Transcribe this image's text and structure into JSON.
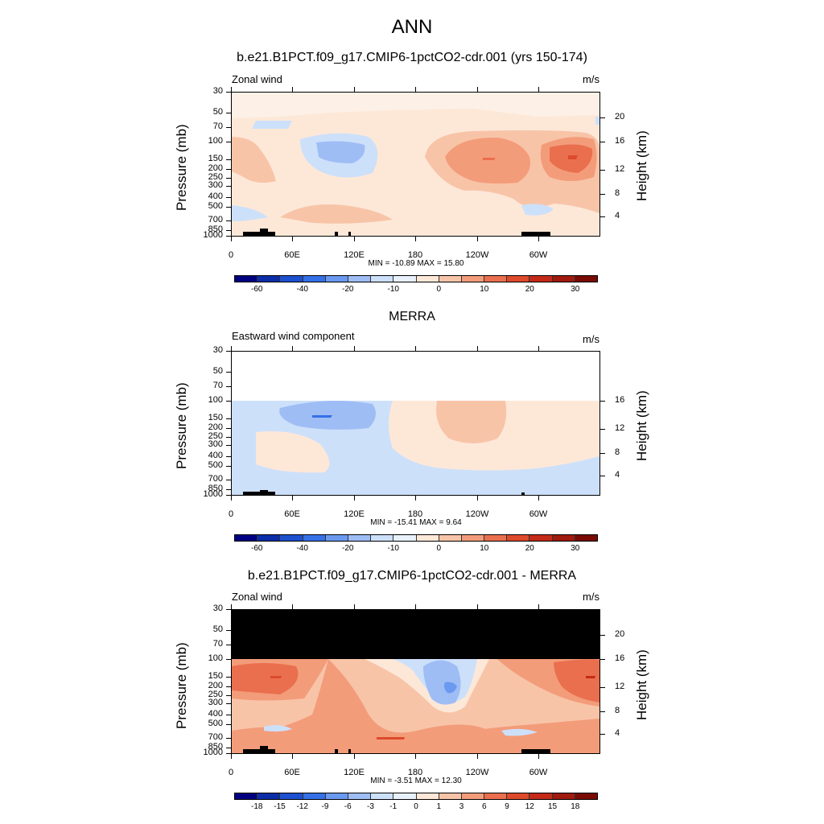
{
  "title": "ANN",
  "shared": {
    "y_left_label": "Pressure (mb)",
    "y_right_label": "Height (km)",
    "pressure_ticks": [
      "30",
      "50",
      "70",
      "100",
      "150",
      "200",
      "250",
      "300",
      "400",
      "500",
      "700",
      "850",
      "1000"
    ],
    "height_ticks": [
      "4",
      "8",
      "12",
      "16",
      "20"
    ],
    "x_ticks": [
      "0",
      "60E",
      "120E",
      "180",
      "120W",
      "60W"
    ]
  },
  "panels": [
    {
      "title": "b.e21.B1PCT.f09_g17.CMIP6-1pctCO2-cdr.001 (yrs 150-174)",
      "left_title": "Zonal wind",
      "units": "m/s",
      "minmax": "MIN = -10.89  MAX =  15.80",
      "colorbar_labels": [
        "-60",
        "-40",
        "-20",
        "-10",
        "0",
        "10",
        "20",
        "30"
      ]
    },
    {
      "title": "MERRA",
      "left_title": "Eastward wind component",
      "units": "m/s",
      "minmax": "MIN = -15.41  MAX =   9.64",
      "colorbar_labels": [
        "-60",
        "-40",
        "-20",
        "-10",
        "0",
        "10",
        "20",
        "30"
      ]
    },
    {
      "title": "b.e21.B1PCT.f09_g17.CMIP6-1pctCO2-cdr.001 - MERRA",
      "left_title": "Zonal wind",
      "units": "m/s",
      "minmax": "MIN =  -3.51  MAX =  12.30",
      "colorbar_labels": [
        "-18",
        "-15",
        "-12",
        "-9",
        "-6",
        "-3",
        "-1",
        "0",
        "1",
        "3",
        "6",
        "9",
        "12",
        "15",
        "18"
      ]
    }
  ],
  "colors": {
    "palette": [
      "#000080",
      "#0a2ea8",
      "#1d50cf",
      "#3570e6",
      "#6a99f0",
      "#9fbdf5",
      "#cde0fa",
      "#fde8d8",
      "#f8c4a8",
      "#f39c7a",
      "#ea6f4e",
      "#dd4a2c",
      "#c42a18",
      "#a01a0e",
      "#7a0a04"
    ],
    "panel1_scale": [
      "#000080",
      "#0a2ea8",
      "#1d50cf",
      "#3570e6",
      "#6a99f0",
      "#9fbdf5",
      "#cde0fa",
      "#e8f0fb",
      "#fde8d8",
      "#f8c4a8",
      "#f39c7a",
      "#ea6f4e",
      "#dd4a2c",
      "#c42a18",
      "#a01a0e",
      "#7a0a04"
    ],
    "panel3_scale": [
      "#000080",
      "#0a2ea8",
      "#1d50cf",
      "#3570e6",
      "#6a99f0",
      "#9fbdf5",
      "#cde0fa",
      "#e8f0fb",
      "#fde8d8",
      "#f8c4a8",
      "#f39c7a",
      "#ea6f4e",
      "#dd4a2c",
      "#c42a18",
      "#a01a0e",
      "#7a0a04"
    ]
  },
  "chart_data": [
    {
      "type": "heatmap",
      "title": "b.e21.B1PCT.f09_g17.CMIP6-1pctCO2-cdr.001 (yrs 150-174)",
      "variable": "Zonal wind",
      "units": "m/s",
      "x_ticks": [
        "0",
        "60E",
        "120E",
        "180",
        "120W",
        "60W"
      ],
      "y_ticks_pressure_mb": [
        30,
        50,
        70,
        100,
        150,
        200,
        250,
        300,
        400,
        500,
        700,
        850,
        1000
      ],
      "y_ticks_height_km": [
        4,
        8,
        12,
        16,
        20
      ],
      "min": -10.89,
      "max": 15.8,
      "contour_levels": [
        -70,
        -60,
        -50,
        -40,
        -30,
        -20,
        -15,
        -10,
        -5,
        0,
        5,
        10,
        15,
        20,
        25,
        30,
        35
      ]
    },
    {
      "type": "heatmap",
      "title": "MERRA",
      "variable": "Eastward wind component",
      "units": "m/s",
      "x_ticks": [
        "0",
        "60E",
        "120E",
        "180",
        "120W",
        "60W"
      ],
      "y_ticks_pressure_mb": [
        30,
        50,
        70,
        100,
        150,
        200,
        250,
        300,
        400,
        500,
        700,
        850,
        1000
      ],
      "y_ticks_height_km": [
        4,
        8,
        12,
        16
      ],
      "min": -15.41,
      "max": 9.64
    },
    {
      "type": "heatmap",
      "title": "b.e21.B1PCT.f09_g17.CMIP6-1pctCO2-cdr.001 - MERRA",
      "variable": "Zonal wind",
      "units": "m/s",
      "x_ticks": [
        "0",
        "60E",
        "120E",
        "180",
        "120W",
        "60W"
      ],
      "y_ticks_pressure_mb": [
        30,
        50,
        70,
        100,
        150,
        200,
        250,
        300,
        400,
        500,
        700,
        850,
        1000
      ],
      "y_ticks_height_km": [
        4,
        8,
        12,
        16,
        20
      ],
      "min": -3.51,
      "max": 12.3,
      "contour_levels": [
        -18,
        -15,
        -12,
        -9,
        -6,
        -3,
        -1,
        0,
        1,
        3,
        6,
        9,
        12,
        15,
        18
      ]
    }
  ]
}
